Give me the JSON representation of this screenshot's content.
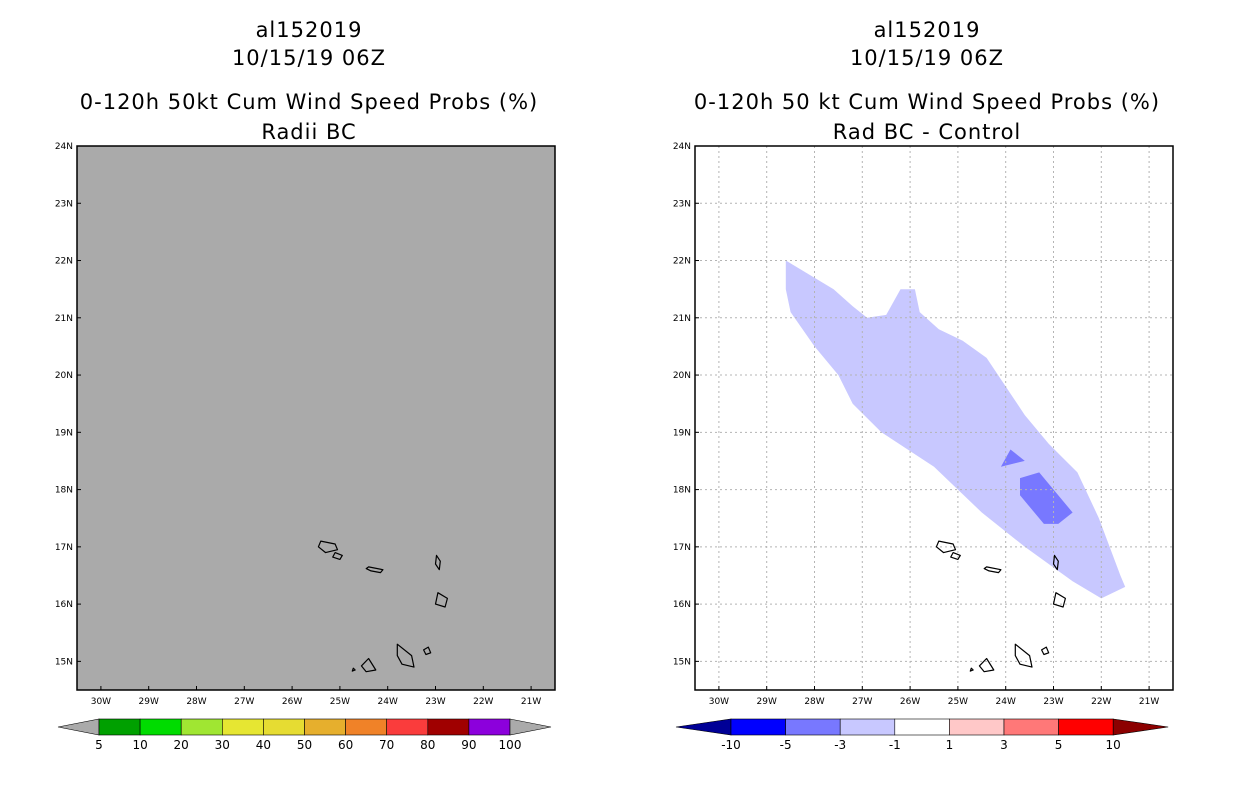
{
  "chart_data": [
    {
      "type": "map",
      "storm_id": "al152019",
      "date_label": "10/15/19 06Z",
      "title": "0-120h 50kt Cum Wind Speed Probs (%)",
      "subtitle": "Radii BC",
      "lon_range": [
        -30.5,
        -20.5
      ],
      "lat_range": [
        14.5,
        24
      ],
      "x_ticks": [
        -30,
        -29,
        -28,
        -27,
        -26,
        -25,
        -24,
        -23,
        -22,
        -21
      ],
      "x_tick_labels": [
        "30W",
        "29W",
        "28W",
        "27W",
        "26W",
        "25W",
        "24W",
        "23W",
        "22W",
        "21W"
      ],
      "y_ticks": [
        15,
        16,
        17,
        18,
        19,
        20,
        21,
        22,
        23,
        24
      ],
      "y_tick_labels": [
        "15N",
        "16N",
        "17N",
        "18N",
        "19N",
        "20N",
        "21N",
        "22N",
        "23N",
        "24N"
      ],
      "background_fill": "#aaaaaa",
      "grid": false,
      "colorbar": {
        "labels": [
          "5",
          "10",
          "20",
          "30",
          "40",
          "50",
          "60",
          "70",
          "80",
          "90",
          "100"
        ],
        "low_arrow_color": "#aaaaaa",
        "high_arrow_color": "#aaaaaa",
        "colors": [
          "#00a000",
          "#00dc00",
          "#a0e632",
          "#e6e632",
          "#e6dc32",
          "#e6af2d",
          "#f08228",
          "#fa3c3c",
          "#a00000",
          "#8c00dc"
        ]
      }
    },
    {
      "type": "map",
      "storm_id": "al152019",
      "date_label": "10/15/19 06Z",
      "title": "0-120h 50 kt Cum Wind Speed Probs (%)",
      "subtitle": "Rad BC - Control",
      "lon_range": [
        -30.5,
        -20.5
      ],
      "lat_range": [
        14.5,
        24
      ],
      "x_ticks": [
        -30,
        -29,
        -28,
        -27,
        -26,
        -25,
        -24,
        -23,
        -22,
        -21
      ],
      "x_tick_labels": [
        "30W",
        "29W",
        "28W",
        "27W",
        "26W",
        "25W",
        "24W",
        "23W",
        "22W",
        "21W"
      ],
      "y_ticks": [
        15,
        16,
        17,
        18,
        19,
        20,
        21,
        22,
        23,
        24
      ],
      "y_tick_labels": [
        "15N",
        "16N",
        "17N",
        "18N",
        "19N",
        "20N",
        "21N",
        "22N",
        "23N",
        "24N"
      ],
      "background_fill": "#ffffff",
      "grid": true,
      "contours": [
        {
          "level_range": [
            -3,
            -1
          ],
          "color": "#c8c8ff",
          "lonlat": [
            [
              -28.6,
              22.0
            ],
            [
              -27.6,
              21.5
            ],
            [
              -27.2,
              21.2
            ],
            [
              -26.9,
              21.0
            ],
            [
              -26.5,
              21.05
            ],
            [
              -26.2,
              21.5
            ],
            [
              -25.9,
              21.5
            ],
            [
              -25.8,
              21.1
            ],
            [
              -25.4,
              20.8
            ],
            [
              -24.9,
              20.6
            ],
            [
              -24.4,
              20.3
            ],
            [
              -24.0,
              19.8
            ],
            [
              -23.6,
              19.3
            ],
            [
              -23.1,
              18.8
            ],
            [
              -22.5,
              18.3
            ],
            [
              -22.05,
              17.5
            ],
            [
              -21.6,
              16.5
            ],
            [
              -21.5,
              16.3
            ],
            [
              -22.0,
              16.1
            ],
            [
              -22.6,
              16.4
            ],
            [
              -23.6,
              17.0
            ],
            [
              -24.5,
              17.6
            ],
            [
              -25.5,
              18.4
            ],
            [
              -26.6,
              19.0
            ],
            [
              -27.2,
              19.5
            ],
            [
              -27.5,
              20.0
            ],
            [
              -28.0,
              20.5
            ],
            [
              -28.5,
              21.1
            ],
            [
              -28.6,
              21.5
            ]
          ]
        },
        {
          "level_range": [
            -5,
            -3
          ],
          "color": "#7878ff",
          "lonlat": [
            [
              -23.3,
              18.3
            ],
            [
              -22.6,
              17.6
            ],
            [
              -22.9,
              17.4
            ],
            [
              -23.2,
              17.4
            ],
            [
              -23.7,
              17.9
            ],
            [
              -23.7,
              18.2
            ]
          ]
        },
        {
          "level_range": [
            -5,
            -3
          ],
          "color": "#7878ff",
          "lonlat": [
            [
              -23.9,
              18.7
            ],
            [
              -23.6,
              18.5
            ],
            [
              -24.1,
              18.4
            ]
          ]
        }
      ],
      "colorbar": {
        "labels": [
          "-10",
          "-5",
          "-3",
          "-1",
          "1",
          "3",
          "5",
          "10"
        ],
        "low_arrow_color": "#000096",
        "high_arrow_color": "#8c0000",
        "colors": [
          "#0000ff",
          "#7878ff",
          "#c8c8ff",
          "#ffffff",
          "#ffc8c8",
          "#ff7878",
          "#ff0000"
        ]
      }
    }
  ],
  "islands": [
    [
      [
        -25.4,
        17.1
      ],
      [
        -25.1,
        17.05
      ],
      [
        -25.05,
        16.95
      ],
      [
        -25.3,
        16.9
      ],
      [
        -25.45,
        17.0
      ]
    ],
    [
      [
        -25.1,
        16.9
      ],
      [
        -24.95,
        16.85
      ],
      [
        -25.0,
        16.78
      ],
      [
        -25.15,
        16.82
      ]
    ],
    [
      [
        -24.4,
        16.65
      ],
      [
        -24.1,
        16.6
      ],
      [
        -24.15,
        16.55
      ],
      [
        -24.35,
        16.58
      ],
      [
        -24.45,
        16.62
      ]
    ],
    [
      [
        -22.98,
        16.85
      ],
      [
        -22.9,
        16.75
      ],
      [
        -22.92,
        16.6
      ],
      [
        -23.0,
        16.7
      ]
    ],
    [
      [
        -22.95,
        16.2
      ],
      [
        -22.75,
        16.1
      ],
      [
        -22.8,
        15.95
      ],
      [
        -23.0,
        16.0
      ]
    ],
    [
      [
        -23.8,
        15.3
      ],
      [
        -23.5,
        15.1
      ],
      [
        -23.45,
        14.9
      ],
      [
        -23.7,
        14.95
      ],
      [
        -23.8,
        15.1
      ]
    ],
    [
      [
        -24.4,
        15.05
      ],
      [
        -24.25,
        14.85
      ],
      [
        -24.45,
        14.82
      ],
      [
        -24.55,
        14.92
      ]
    ],
    [
      [
        -23.15,
        15.25
      ],
      [
        -23.1,
        15.15
      ],
      [
        -23.2,
        15.12
      ],
      [
        -23.25,
        15.2
      ]
    ],
    [
      [
        -24.72,
        14.88
      ],
      [
        -24.68,
        14.85
      ],
      [
        -24.74,
        14.83
      ]
    ]
  ]
}
